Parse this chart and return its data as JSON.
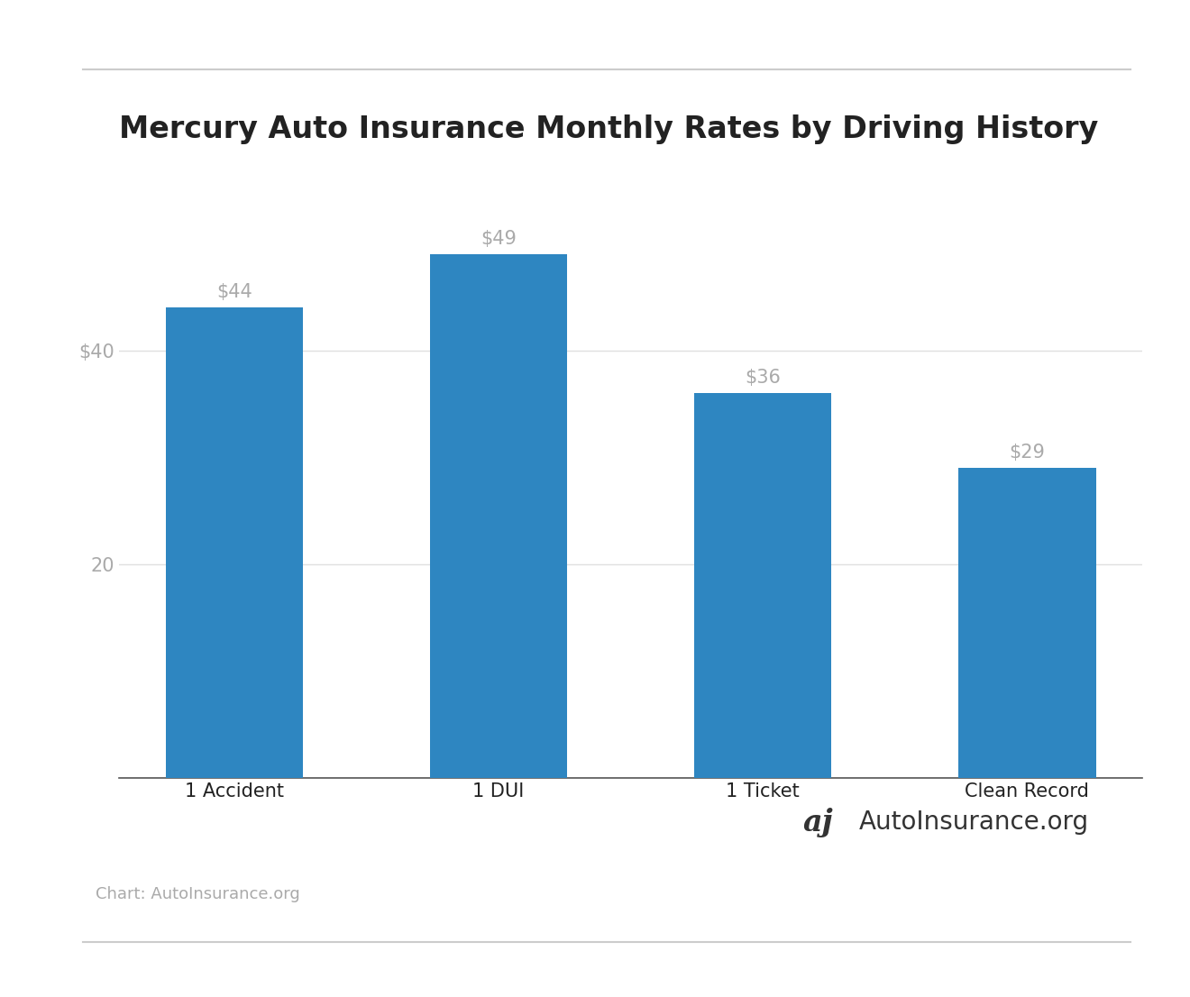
{
  "title": "Mercury Auto Insurance Monthly Rates by Driving History",
  "categories": [
    "1 Accident",
    "1 DUI",
    "1 Ticket",
    "Clean Record"
  ],
  "values": [
    44,
    49,
    36,
    29
  ],
  "bar_color": "#2e86c1",
  "bar_labels": [
    "$44",
    "$49",
    "$36",
    "$29"
  ],
  "ylim": [
    0,
    56
  ],
  "background_color": "#ffffff",
  "title_fontsize": 24,
  "bar_label_fontsize": 15,
  "tick_label_fontsize": 15,
  "xtick_label_fontsize": 15,
  "axis_label_color": "#aaaaaa",
  "title_color": "#222222",
  "footer_text": "Chart: AutoInsurance.org",
  "footer_fontsize": 13,
  "footer_color": "#aaaaaa",
  "watermark_text": "AutoInsurance.org",
  "watermark_fontsize": 20,
  "watermark_color": "#333333",
  "grid_color": "#e0e0e0",
  "bar_width": 0.52,
  "separator_color": "#cccccc",
  "separator_linewidth": 1.5
}
